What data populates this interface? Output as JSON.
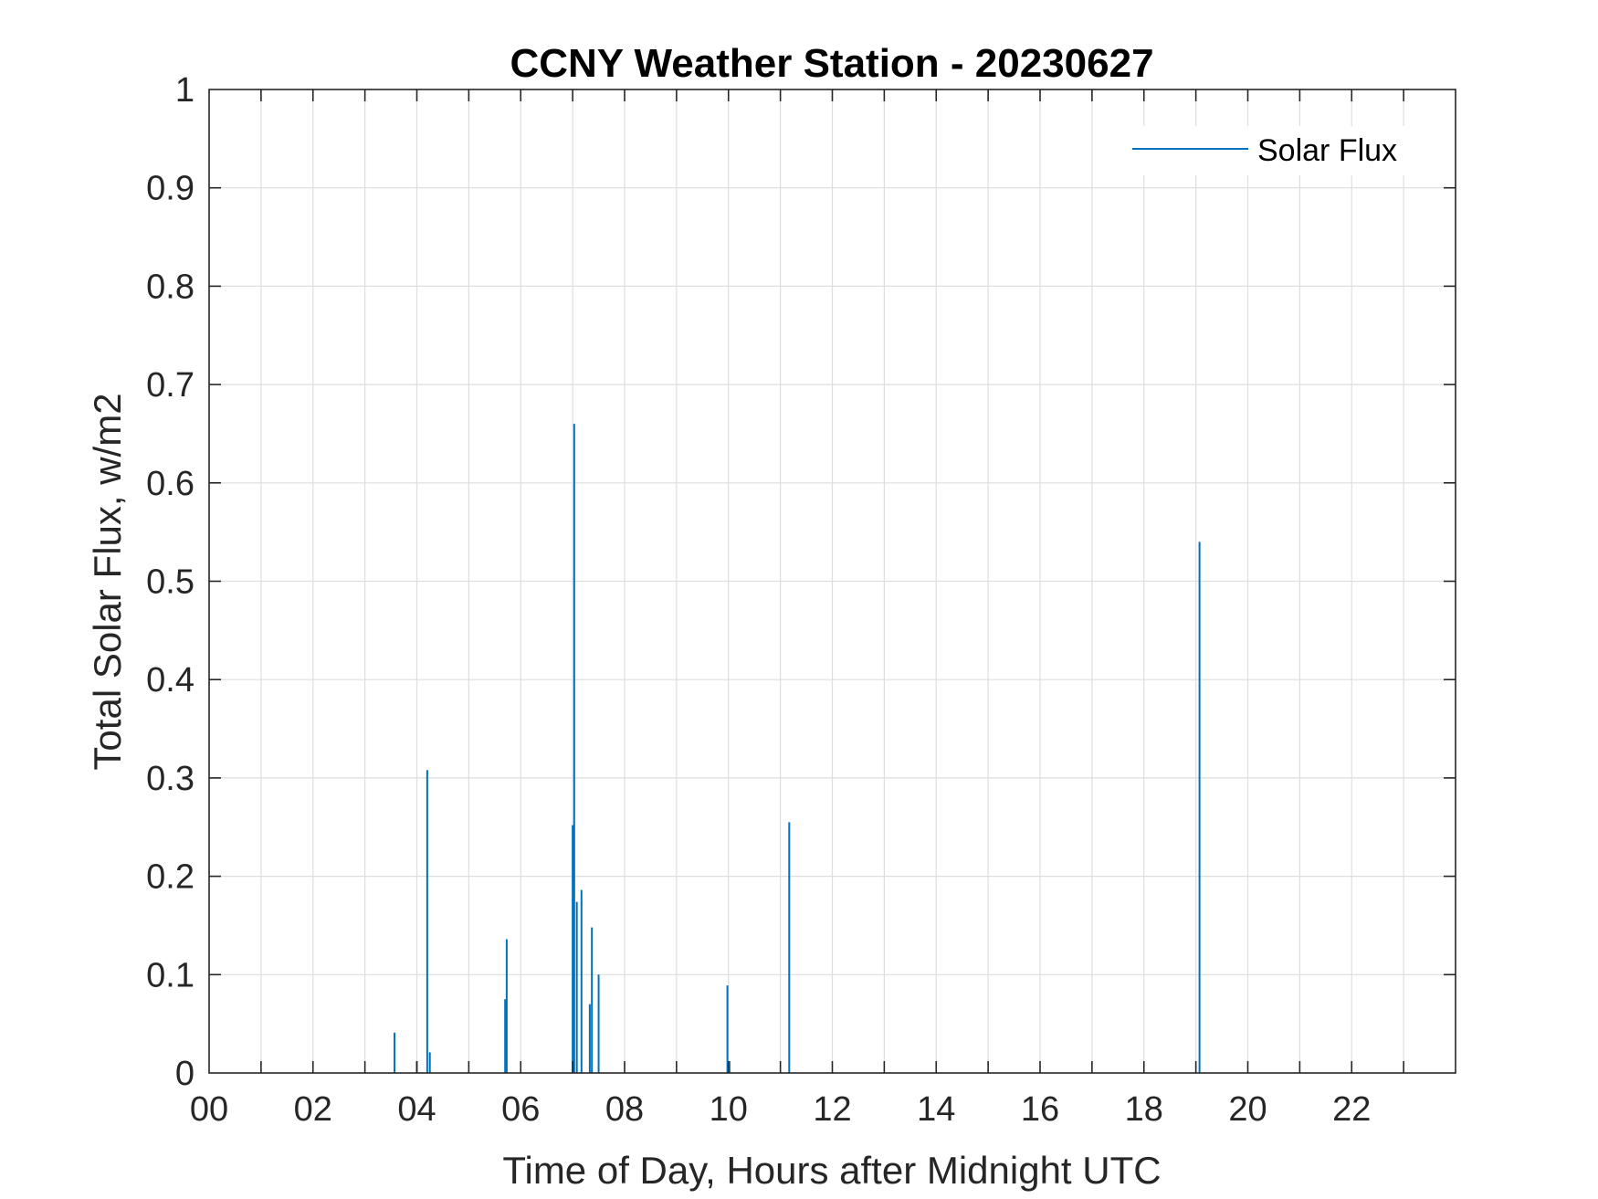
{
  "chart_data": {
    "type": "line",
    "title": "CCNY Weather Station - 20230627",
    "xlabel": "Time of Day, Hours after Midnight UTC",
    "ylabel": "Total Solar Flux, w/m2",
    "xlim": [
      0,
      24
    ],
    "ylim": [
      0,
      1
    ],
    "x_ticks": [
      0,
      2,
      4,
      6,
      8,
      10,
      12,
      14,
      16,
      18,
      20,
      22
    ],
    "x_tick_labels": [
      "00",
      "02",
      "04",
      "06",
      "08",
      "10",
      "12",
      "14",
      "16",
      "18",
      "20",
      "22"
    ],
    "x_minor_grid_step": 1,
    "y_ticks": [
      0,
      0.1,
      0.2,
      0.3,
      0.4,
      0.5,
      0.6,
      0.7,
      0.8,
      0.9,
      1
    ],
    "y_tick_labels": [
      "0",
      "0.1",
      "0.2",
      "0.3",
      "0.4",
      "0.5",
      "0.6",
      "0.7",
      "0.8",
      "0.9",
      "1"
    ],
    "grid": true,
    "legend_position": "top-right",
    "series": [
      {
        "name": "Solar Flux",
        "color": "#0072BD",
        "spikes": [
          {
            "x": 3.57,
            "y": 0.041
          },
          {
            "x": 4.0,
            "y": 0.012
          },
          {
            "x": 4.2,
            "y": 0.308
          },
          {
            "x": 4.25,
            "y": 0.021
          },
          {
            "x": 5.7,
            "y": 0.075
          },
          {
            "x": 5.73,
            "y": 0.136
          },
          {
            "x": 7.0,
            "y": 0.252
          },
          {
            "x": 7.03,
            "y": 0.66
          },
          {
            "x": 7.08,
            "y": 0.174
          },
          {
            "x": 7.17,
            "y": 0.186
          },
          {
            "x": 7.33,
            "y": 0.07
          },
          {
            "x": 7.37,
            "y": 0.148
          },
          {
            "x": 7.5,
            "y": 0.1
          },
          {
            "x": 9.98,
            "y": 0.089
          },
          {
            "x": 10.02,
            "y": 0.012
          },
          {
            "x": 11.17,
            "y": 0.255
          },
          {
            "x": 19.07,
            "y": 0.54
          }
        ]
      }
    ]
  }
}
